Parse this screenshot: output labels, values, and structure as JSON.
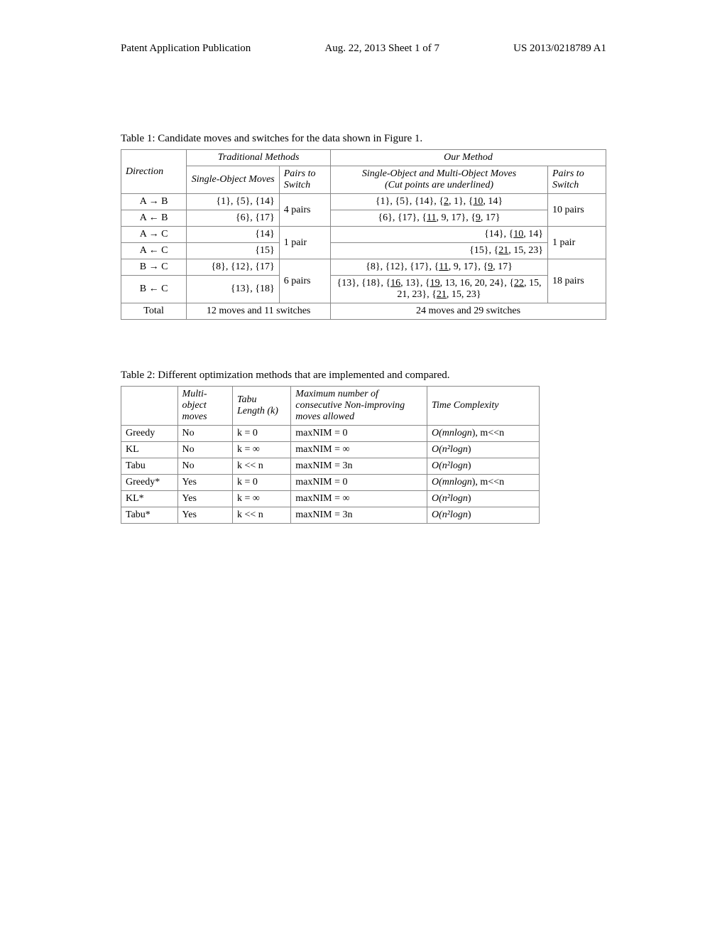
{
  "header": {
    "left": "Patent Application Publication",
    "center": "Aug. 22, 2013  Sheet 1 of 7",
    "right": "US 2013/0218789 A1"
  },
  "table1": {
    "caption": "Table 1: Candidate moves and switches for the data shown in Figure 1.",
    "head": {
      "trad": "Traditional Methods",
      "our": "Our Method",
      "direction": "Direction",
      "single": "Single-Object Moves",
      "pairs1": "Pairs to Switch",
      "multi_l1": "Single-Object and Multi-Object Moves",
      "multi_l2": "(Cut points are underlined)",
      "pairs2": "Pairs to Switch"
    },
    "rows": {
      "r1_dir": "A → B",
      "r1_so": "{1}, {5}, {14}",
      "r12_pairs": "4 pairs",
      "r1_mo_a": "{1}, {5}, {14}, {",
      "r1_mo_u1": "2",
      "r1_mo_b": ", 1}, {",
      "r1_mo_u2": "10",
      "r1_mo_c": ", 14}",
      "r12_pairs2": "10 pairs",
      "r2_dir": "A ← B",
      "r2_so": "{6}, {17}",
      "r2_mo_a": "{6}, {17}, {",
      "r2_mo_u1": "11",
      "r2_mo_b": ", 9, 17}, {",
      "r2_mo_u2": "9",
      "r2_mo_c": ", 17}",
      "r3_dir": "A → C",
      "r3_so": "{14}",
      "r34_pairs": "1 pair",
      "r3_mo_a": "{14}, {",
      "r3_mo_u1": "10",
      "r3_mo_b": ", 14}",
      "r34_pairs2": "1 pair",
      "r4_dir": "A ← C",
      "r4_so": "{15}",
      "r4_mo_a": "{15}, {",
      "r4_mo_u1": "21",
      "r4_mo_b": ", 15, 23}",
      "r5_dir": "B → C",
      "r5_so": "{8}, {12}, {17}",
      "r56_pairs": "6 pairs",
      "r5_mo_a": "{8}, {12}, {17}, {",
      "r5_mo_u1": "11",
      "r5_mo_b": ", 9, 17}, {",
      "r5_mo_u2": "9",
      "r5_mo_c": ", 17}",
      "r56_pairs2": "18 pairs",
      "r6_dir": "B ← C",
      "r6_so": "{13}, {18}",
      "r6_mo_a": "{13}, {18}, {",
      "r6_mo_u1": "16",
      "r6_mo_b": ", 13}, {",
      "r6_mo_u2": "19",
      "r6_mo_c": ", 13, 16, 20, 24}, {",
      "r6_mo_u3": "22",
      "r6_mo_d": ", 15, 21, 23}, {",
      "r6_mo_u4": "21",
      "r6_mo_e": ", 15, 23}",
      "total_label": "Total",
      "total_trad": "12 moves and 11 switches",
      "total_our": "24 moves and 29 switches"
    }
  },
  "table2": {
    "caption": "Table 2: Different optimization methods that are implemented and compared.",
    "head": {
      "c2": "Multi-object moves",
      "c3": "Tabu Length (k)",
      "c4": "Maximum number of consecutive Non-improving moves allowed",
      "c5": "Time Complexity"
    },
    "rows": [
      {
        "name": "Greedy",
        "mo": "No",
        "k": "k = 0",
        "max": "maxNIM = 0",
        "tc_pre": "O(mn",
        "tc_post": "), m<<n",
        "tc_italic": "logn"
      },
      {
        "name": "KL",
        "mo": "No",
        "k": "k = ∞",
        "max": "maxNIM = ∞",
        "tc_pre": "O(n²",
        "tc_post": ")",
        "tc_italic": "logn"
      },
      {
        "name": "Tabu",
        "mo": "No",
        "k": "k << n",
        "max": "maxNIM = 3n",
        "tc_pre": "O(n²",
        "tc_post": ")",
        "tc_italic": "logn"
      },
      {
        "name": "Greedy*",
        "mo": "Yes",
        "k": "k = 0",
        "max": "maxNIM = 0",
        "tc_pre": "O(mn",
        "tc_post": "), m<<n",
        "tc_italic": "logn"
      },
      {
        "name": "KL*",
        "mo": "Yes",
        "k": "k = ∞",
        "max": "maxNIM = ∞",
        "tc_pre": "O(n²",
        "tc_post": ")",
        "tc_italic": "logn"
      },
      {
        "name": "Tabu*",
        "mo": "Yes",
        "k": "k << n",
        "max": "maxNIM = 3n",
        "tc_pre": "O(n²",
        "tc_post": ")",
        "tc_italic": "logn"
      }
    ]
  }
}
